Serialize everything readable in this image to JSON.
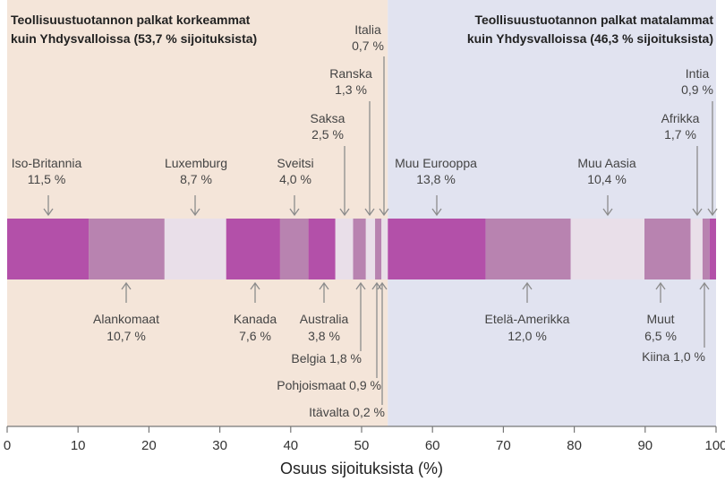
{
  "chart_data": {
    "type": "bar",
    "orientation": "horizontal-stacked",
    "xlabel": "Osuus sijoituksista (%)",
    "xlim": [
      0,
      100
    ],
    "xticks": [
      "0",
      "10",
      "20",
      "30",
      "40",
      "50",
      "60",
      "70",
      "80",
      "90",
      "100"
    ],
    "grid": false,
    "regions": [
      {
        "name_lines": [
          "Teollisuustuotannon palkat korkeammat",
          "kuin Yhdysvalloissa (53,7 % sijoituksista)"
        ],
        "from": 0,
        "to": 53.7,
        "color": "#f4e5d9"
      },
      {
        "name_lines": [
          "Teollisuustuotannon palkat matalammat",
          "kuin Yhdysvalloissa (46,3 % sijoituksista)"
        ],
        "from": 53.7,
        "to": 100,
        "color": "#e1e3f0"
      }
    ],
    "segments": [
      {
        "name": "Iso-Britannia",
        "value": 11.5,
        "label": "11,5 %",
        "shade": "dark"
      },
      {
        "name": "Alankomaat",
        "value": 10.7,
        "label": "10,7 %",
        "shade": "mid"
      },
      {
        "name": "Luxemburg",
        "value": 8.7,
        "label": "8,7 %",
        "shade": "light"
      },
      {
        "name": "Kanada",
        "value": 7.6,
        "label": "7,6 %",
        "shade": "dark"
      },
      {
        "name": "Sveitsi",
        "value": 4.0,
        "label": "4,0 %",
        "shade": "mid"
      },
      {
        "name": "Australia",
        "value": 3.8,
        "label": "3,8 %",
        "shade": "dark"
      },
      {
        "name": "Saksa",
        "value": 2.5,
        "label": "2,5 %",
        "shade": "light"
      },
      {
        "name": "Belgia",
        "value": 1.8,
        "label": "1,8 %",
        "shade": "mid"
      },
      {
        "name": "Ranska",
        "value": 1.3,
        "label": "1,3 %",
        "shade": "light"
      },
      {
        "name": "Pohjoismaat",
        "value": 0.9,
        "label": "0,9 %",
        "shade": "mid"
      },
      {
        "name": "Itävalta",
        "value": 0.2,
        "label": "0,2 %",
        "shade": "light"
      },
      {
        "name": "Italia",
        "value": 0.7,
        "label": "0,7 %",
        "shade": "light"
      },
      {
        "name": "Muu Eurooppa",
        "value": 13.8,
        "label": "13,8 %",
        "shade": "dark"
      },
      {
        "name": "Etelä-Amerikka",
        "value": 12.0,
        "label": "12,0 %",
        "shade": "mid"
      },
      {
        "name": "Muu Aasia",
        "value": 10.4,
        "label": "10,4 %",
        "shade": "light"
      },
      {
        "name": "Muut",
        "value": 6.5,
        "label": "6,5 %",
        "shade": "mid"
      },
      {
        "name": "Afrikka",
        "value": 1.7,
        "label": "1,7 %",
        "shade": "light"
      },
      {
        "name": "Kiina",
        "value": 1.0,
        "label": "1,0 %",
        "shade": "mid"
      },
      {
        "name": "Intia",
        "value": 0.9,
        "label": "0,9 %",
        "shade": "dark"
      }
    ],
    "colors": {
      "dark": "#b350a9",
      "mid": "#b883b0",
      "light": "#e9dfe9",
      "arrow": "#8c8c8c"
    }
  }
}
